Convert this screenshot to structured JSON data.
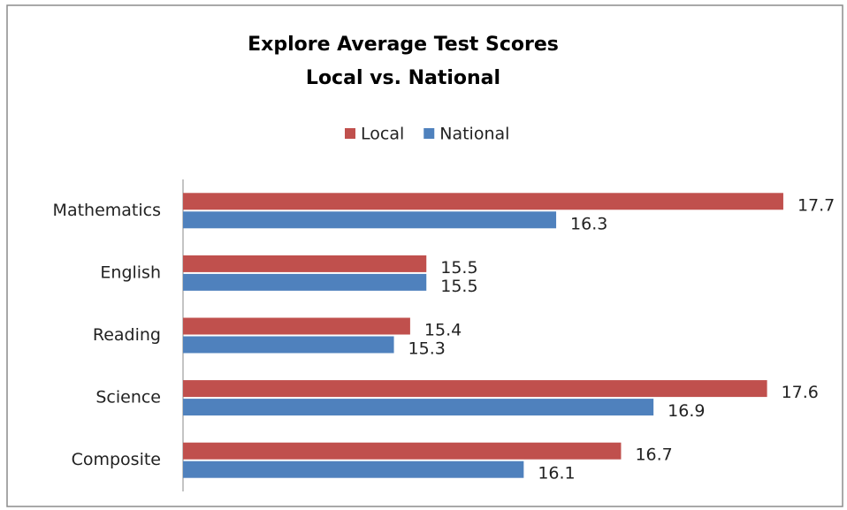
{
  "chart_data": {
    "type": "hbar",
    "title": "Explore Average Test Scores",
    "subtitle": "Local vs. National",
    "categories": [
      "Mathematics",
      "English",
      "Reading",
      "Science",
      "Composite"
    ],
    "series": [
      {
        "name": "Local",
        "color": "#c0504d",
        "values": [
          17.7,
          15.5,
          15.4,
          17.6,
          16.7
        ]
      },
      {
        "name": "National",
        "color": "#4f81bd",
        "values": [
          16.3,
          15.5,
          15.3,
          16.9,
          16.1
        ]
      }
    ],
    "xlim": [
      14,
      18
    ],
    "legend": "top"
  }
}
